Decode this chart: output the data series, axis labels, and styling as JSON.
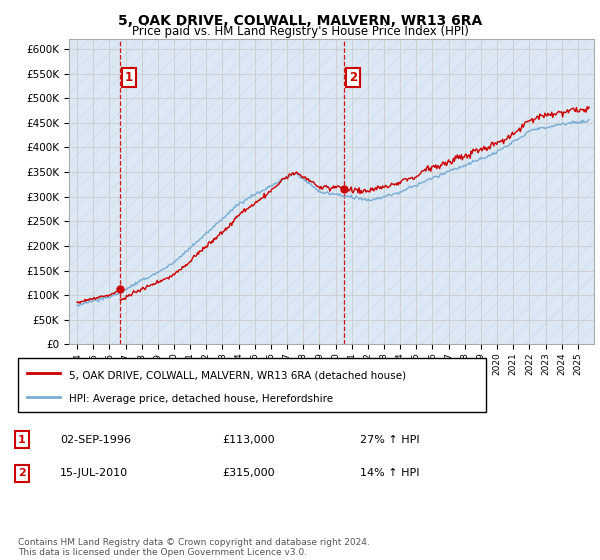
{
  "title": "5, OAK DRIVE, COLWALL, MALVERN, WR13 6RA",
  "subtitle": "Price paid vs. HM Land Registry's House Price Index (HPI)",
  "legend_line1": "5, OAK DRIVE, COLWALL, MALVERN, WR13 6RA (detached house)",
  "legend_line2": "HPI: Average price, detached house, Herefordshire",
  "annotation1_label": "1",
  "annotation1_date": "02-SEP-1996",
  "annotation1_price": "£113,000",
  "annotation1_hpi": "27% ↑ HPI",
  "annotation2_label": "2",
  "annotation2_date": "15-JUL-2010",
  "annotation2_price": "£315,000",
  "annotation2_hpi": "14% ↑ HPI",
  "footer": "Contains HM Land Registry data © Crown copyright and database right 2024.\nThis data is licensed under the Open Government Licence v3.0.",
  "ylim": [
    0,
    620000
  ],
  "yticks": [
    0,
    50000,
    100000,
    150000,
    200000,
    250000,
    300000,
    350000,
    400000,
    450000,
    500000,
    550000,
    600000
  ],
  "price_color": "#cc0000",
  "hpi_color": "#7aadd4",
  "grid_color": "#cccccc",
  "background_color": "#ffffff",
  "plot_bg_color": "#dce8f4",
  "diag_line_color": "#c0d4e8",
  "annotation_color": "#cc0000",
  "sale1_x": 1996.67,
  "sale1_y": 113000,
  "sale2_x": 2010.54,
  "sale2_y": 315000,
  "vline1_x": 1996.67,
  "vline2_x": 2010.54,
  "xlim_left": 1993.5,
  "xlim_right": 2026.0
}
